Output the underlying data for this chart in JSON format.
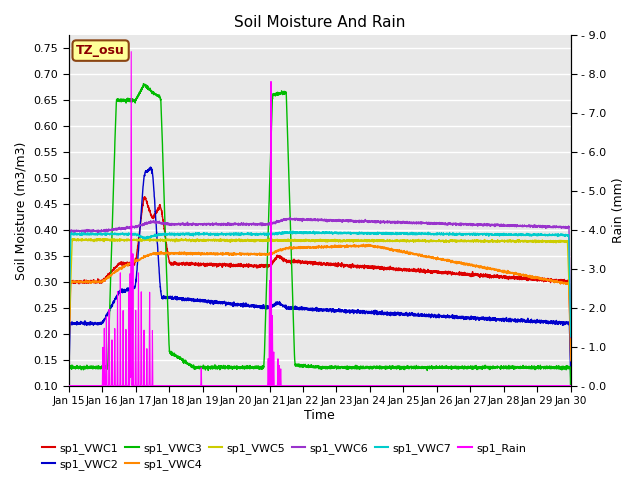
{
  "title": "Soil Moisture And Rain",
  "xlabel": "Time",
  "ylabel_left": "Soil Moisture (m3/m3)",
  "ylabel_right": "Rain (mm)",
  "station_label": "TZ_osu",
  "ylim_left": [
    0.1,
    0.775
  ],
  "ylim_right": [
    0.0,
    9.0
  ],
  "yticks_left": [
    0.1,
    0.15,
    0.2,
    0.25,
    0.3,
    0.35,
    0.4,
    0.45,
    0.5,
    0.55,
    0.6,
    0.65,
    0.7,
    0.75
  ],
  "yticks_right": [
    0.0,
    1.0,
    2.0,
    3.0,
    4.0,
    5.0,
    6.0,
    7.0,
    8.0,
    9.0
  ],
  "xtick_labels": [
    "Jan 15",
    "Jan 16",
    "Jan 17",
    "Jan 18",
    "Jan 19",
    "Jan 20",
    "Jan 21",
    "Jan 22",
    "Jan 23",
    "Jan 24",
    "Jan 25",
    "Jan 26",
    "Jan 27",
    "Jan 28",
    "Jan 29",
    "Jan 30"
  ],
  "xtick_positions": [
    0,
    24,
    48,
    72,
    96,
    120,
    144,
    168,
    192,
    216,
    240,
    264,
    288,
    312,
    336,
    360
  ],
  "xlim": [
    0,
    360
  ],
  "colors": {
    "VWC1": "#dd0000",
    "VWC2": "#0000cc",
    "VWC3": "#00bb00",
    "VWC4": "#ff8800",
    "VWC5": "#cccc00",
    "VWC6": "#9933cc",
    "VWC7": "#00cccc",
    "Rain": "#ff00ff"
  },
  "legend_entries": [
    {
      "label": "sp1_VWC1",
      "color": "#dd0000"
    },
    {
      "label": "sp1_VWC2",
      "color": "#0000cc"
    },
    {
      "label": "sp1_VWC3",
      "color": "#00bb00"
    },
    {
      "label": "sp1_VWC4",
      "color": "#ff8800"
    },
    {
      "label": "sp1_VWC5",
      "color": "#cccc00"
    },
    {
      "label": "sp1_VWC6",
      "color": "#9933cc"
    },
    {
      "label": "sp1_VWC7",
      "color": "#00cccc"
    },
    {
      "label": "sp1_Rain",
      "color": "#ff00ff"
    }
  ],
  "background_color": "#e8e8e8",
  "grid_color": "#ffffff",
  "band_colors": [
    "#e0e0e0",
    "#d0d0d0"
  ]
}
